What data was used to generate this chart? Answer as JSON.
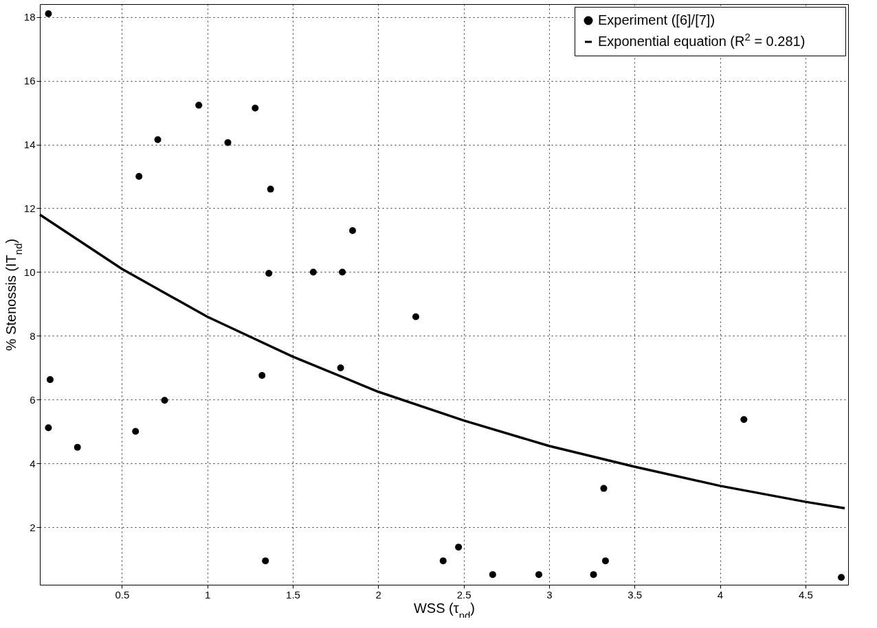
{
  "chart_data": {
    "type": "scatter",
    "xlabel": "WSS (τ$_{nd}$)",
    "ylabel": "% Stenossis (IT$_{nd}$)",
    "xlim": [
      0.02,
      4.75
    ],
    "ylim": [
      0.2,
      18.4
    ],
    "xticks": [
      0.5,
      1,
      1.5,
      2,
      2.5,
      3,
      3.5,
      4,
      4.5
    ],
    "yticks": [
      2,
      4,
      6,
      8,
      10,
      12,
      14,
      16,
      18
    ],
    "grid": true,
    "legend": "top right",
    "series": [
      {
        "name": "Experiment ([6]/[7])",
        "color": "#000000",
        "marker": "circle",
        "x": [
          0.07,
          0.08,
          0.07,
          0.24,
          0.95,
          1.12,
          1.28,
          0.71,
          0.6,
          1.37,
          1.85,
          1.36,
          1.62,
          1.79,
          2.22,
          1.78,
          1.32,
          0.75,
          0.58,
          1.34,
          2.38,
          2.47,
          2.67,
          2.94,
          3.26,
          3.32,
          3.33,
          4.14,
          4.71
        ],
        "values": [
          18.1,
          6.63,
          5.12,
          4.51,
          15.23,
          14.06,
          15.14,
          14.15,
          13.0,
          12.6,
          11.3,
          9.96,
          10.0,
          10.0,
          8.6,
          7.0,
          6.76,
          5.98,
          5.01,
          0.95,
          0.95,
          1.38,
          0.52,
          0.52,
          0.52,
          3.22,
          0.95,
          5.38,
          0.43
        ]
      },
      {
        "name": "Exponential equation (R$^{2}$ = 0.281)",
        "type": "line",
        "color": "#000000",
        "x": [
          0.02,
          0.5,
          1,
          1.5,
          2,
          2.5,
          3,
          3.5,
          4,
          4.5,
          4.73
        ],
        "values": [
          11.8,
          10.1,
          8.6,
          7.35,
          6.25,
          5.35,
          4.55,
          3.9,
          3.3,
          2.8,
          2.6
        ]
      }
    ]
  }
}
